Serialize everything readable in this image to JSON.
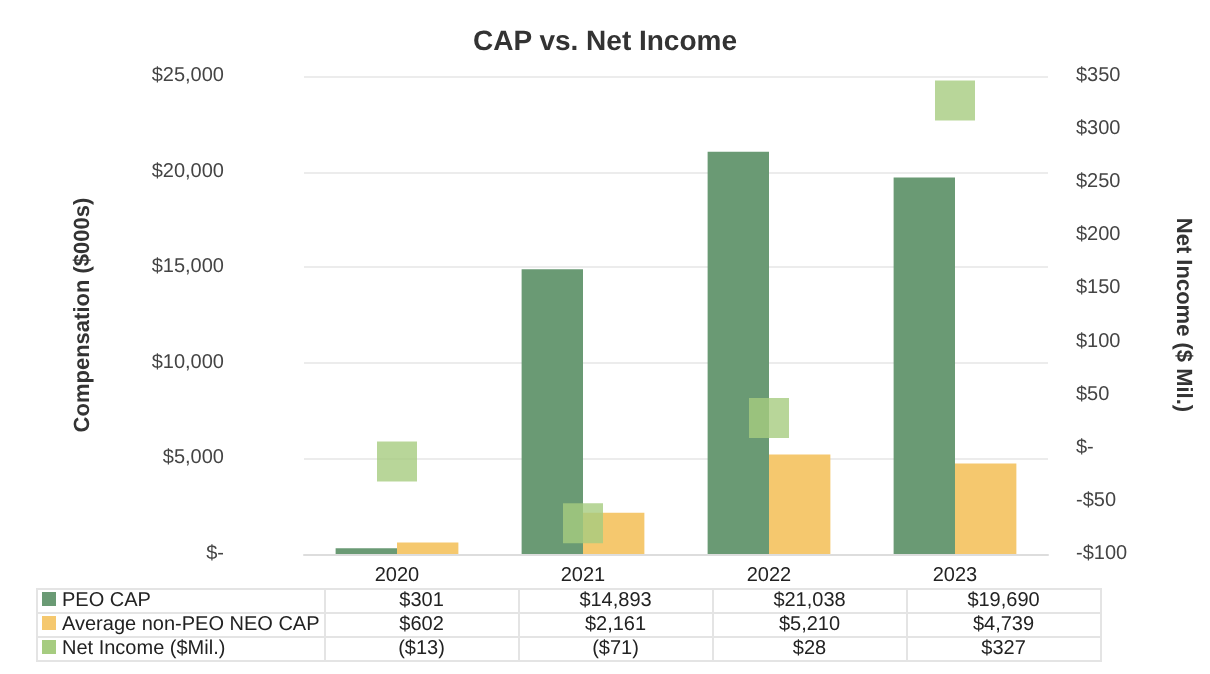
{
  "chart_data": {
    "type": "bar",
    "title": "CAP vs. Net Income",
    "ylabel": "Compensation ($000s)",
    "y2label": "Net Income ($ Mil.)",
    "categories": [
      "2020",
      "2021",
      "2022",
      "2023"
    ],
    "series": [
      {
        "name": "PEO CAP",
        "color": "#6a9a74",
        "values": [
          301,
          14893,
          21038,
          19690
        ],
        "value_labels": [
          "$301",
          "$14,893",
          "$21,038",
          "$19,690"
        ]
      },
      {
        "name": "Average non-PEO NEO CAP",
        "color": "#f5c86e",
        "values": [
          602,
          2161,
          5210,
          4739
        ],
        "value_labels": [
          "$602",
          "$2,161",
          "$5,210",
          "$4,739"
        ]
      },
      {
        "name": "Net Income ($Mil.)",
        "type": "scatter",
        "axis": "y2",
        "marker": "square",
        "color": "#a6cc80",
        "values": [
          -13,
          -71,
          28,
          327
        ],
        "value_labels": [
          "($13)",
          "($71)",
          "$28",
          "$327"
        ]
      }
    ],
    "ylim": [
      0,
      25000
    ],
    "yticks": [
      {
        "value": 0,
        "label": "$-"
      },
      {
        "value": 5000,
        "label": "$5,000"
      },
      {
        "value": 10000,
        "label": "$10,000"
      },
      {
        "value": 15000,
        "label": "$15,000"
      },
      {
        "value": 20000,
        "label": "$20,000"
      },
      {
        "value": 25000,
        "label": "$25,000"
      }
    ],
    "y2lim": [
      -100,
      350
    ],
    "y2ticks": [
      {
        "value": -100,
        "label": "-$100"
      },
      {
        "value": -50,
        "label": "-$50"
      },
      {
        "value": 0,
        "label": "$-"
      },
      {
        "value": 50,
        "label": "$50"
      },
      {
        "value": 100,
        "label": "$100"
      },
      {
        "value": 150,
        "label": "$150"
      },
      {
        "value": 200,
        "label": "$200"
      },
      {
        "value": 250,
        "label": "$250"
      },
      {
        "value": 300,
        "label": "$300"
      },
      {
        "value": 350,
        "label": "$350"
      }
    ],
    "grid": "y",
    "legend": "bottom"
  }
}
